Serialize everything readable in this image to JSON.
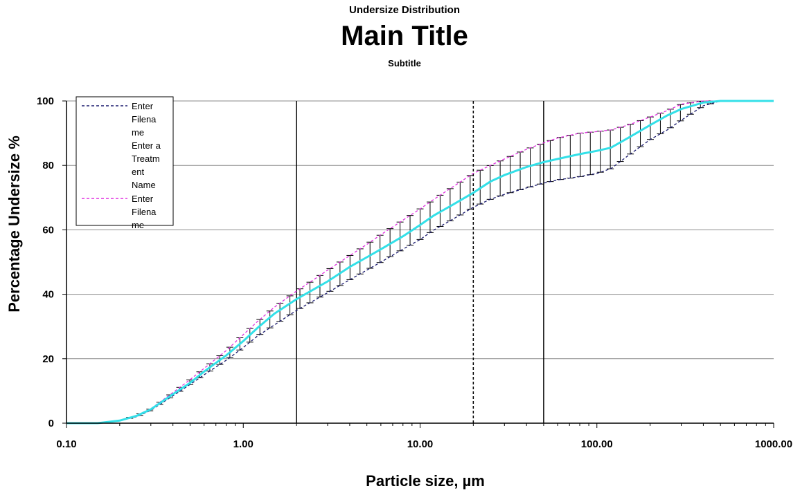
{
  "titles": {
    "supertitle": "Undersize Distribution",
    "main": "Main Title",
    "subtitle": "Subtitle"
  },
  "chart_data": {
    "type": "line",
    "xscale": "log",
    "xlim": [
      0.1,
      1000
    ],
    "ylim": [
      0,
      100
    ],
    "xlabel": "Particle size, µm",
    "ylabel": "Percentage Undersize %",
    "x_ticks": [
      "0.10",
      "1.00",
      "10.00",
      "100.00",
      "1000.00"
    ],
    "y_ticks": [
      "0",
      "20",
      "40",
      "60",
      "80",
      "100"
    ],
    "grid": "horizontal",
    "legend_position": "top-left",
    "legend": [
      "Enter Filename",
      "Enter a Treatment Name",
      "Enter Filename"
    ],
    "reference_lines": [
      {
        "x": 2,
        "style": "solid"
      },
      {
        "x": 20,
        "style": "dashed"
      },
      {
        "x": 50,
        "style": "solid"
      }
    ],
    "series": [
      {
        "name": "Enter Filename",
        "style": "dashed",
        "color": "#1a1a6e",
        "x": [
          0.1,
          0.15,
          0.2,
          0.25,
          0.3,
          0.4,
          0.5,
          0.6,
          0.8,
          1,
          1.2,
          1.5,
          2,
          2.5,
          3,
          4,
          5,
          6,
          8,
          10,
          12,
          15,
          20,
          25,
          30,
          40,
          50,
          60,
          80,
          100,
          120,
          150,
          200,
          250,
          300,
          400,
          500,
          700,
          1000
        ],
        "y": [
          0,
          0,
          0.8,
          2,
          4,
          8.5,
          12,
          15,
          19.5,
          23.5,
          27,
          30.5,
          35,
          38,
          40.5,
          44.5,
          47.5,
          50,
          54,
          57,
          60,
          63,
          67,
          69.5,
          71,
          73,
          74.5,
          75.5,
          76.5,
          77.5,
          79,
          83,
          88,
          91,
          94,
          98.5,
          100,
          100,
          100
        ]
      },
      {
        "name": "Enter a Treatment Name",
        "style": "solid",
        "color": "#33e0e8",
        "x": [
          0.1,
          0.15,
          0.2,
          0.25,
          0.3,
          0.4,
          0.5,
          0.6,
          0.8,
          1,
          1.2,
          1.5,
          2,
          2.5,
          3,
          4,
          5,
          6,
          8,
          10,
          12,
          15,
          20,
          25,
          30,
          40,
          50,
          60,
          80,
          100,
          120,
          150,
          200,
          250,
          300,
          400,
          500,
          700,
          1000
        ],
        "y": [
          0,
          0,
          0.8,
          2.3,
          4.3,
          9,
          12.5,
          16,
          21,
          25.5,
          29.5,
          34,
          38.5,
          41.5,
          44,
          48.5,
          51.5,
          54,
          58,
          61.5,
          64.5,
          67.5,
          71.5,
          75,
          77,
          79.5,
          81,
          82,
          83.5,
          84.5,
          85.5,
          88.5,
          92.5,
          95.5,
          97.5,
          99.5,
          100,
          100,
          100
        ]
      },
      {
        "name": "Enter Filename",
        "style": "dashed",
        "color": "#e030e0",
        "x": [
          0.1,
          0.15,
          0.2,
          0.25,
          0.3,
          0.4,
          0.5,
          0.6,
          0.8,
          1,
          1.2,
          1.5,
          2,
          2.5,
          3,
          4,
          5,
          6,
          8,
          10,
          12,
          15,
          20,
          25,
          30,
          40,
          50,
          60,
          80,
          100,
          120,
          150,
          200,
          250,
          300,
          400,
          500,
          700,
          1000
        ],
        "y": [
          0,
          0,
          0.8,
          2.5,
          4.5,
          9.5,
          13.5,
          17,
          22.5,
          27.5,
          31.5,
          36,
          41,
          44.5,
          47.5,
          52,
          55.5,
          58.5,
          63,
          66.5,
          69.5,
          73,
          77.5,
          80,
          82,
          85,
          87,
          88.5,
          90,
          90.5,
          91,
          92.5,
          95,
          97,
          99,
          100,
          100,
          100,
          100
        ]
      }
    ]
  }
}
